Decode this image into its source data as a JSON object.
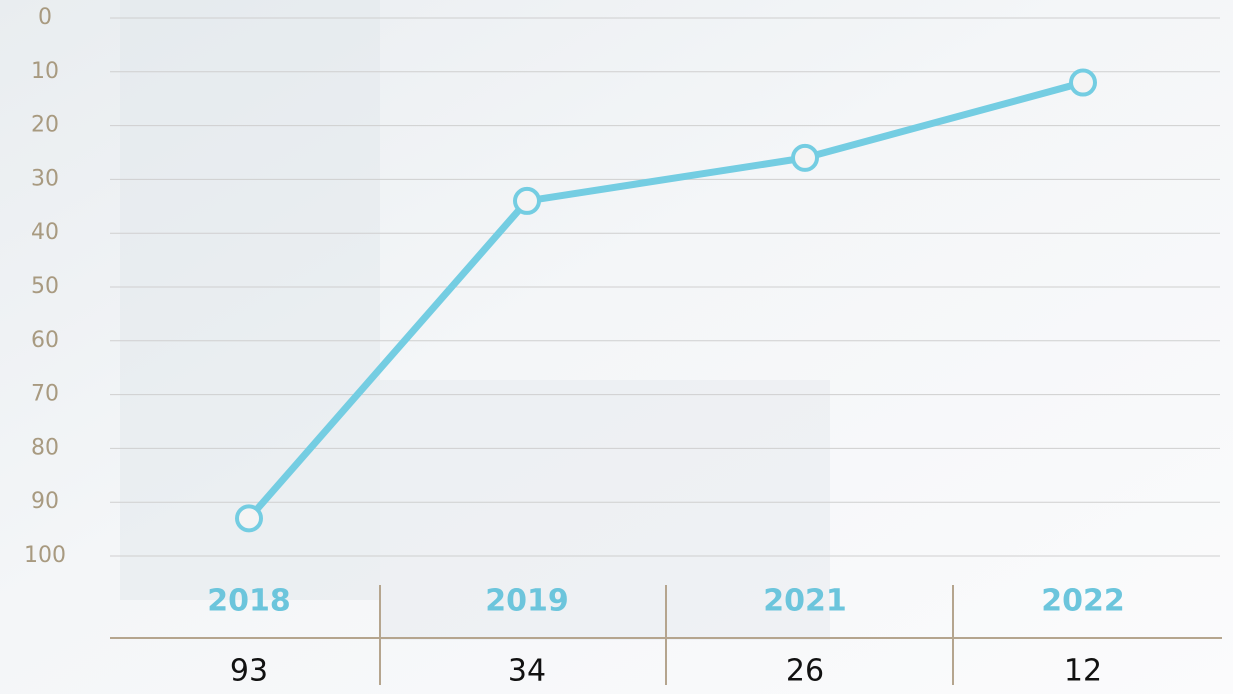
{
  "chart_data": {
    "type": "line",
    "categories": [
      "2018",
      "2019",
      "2021",
      "2022"
    ],
    "values": [
      93,
      34,
      26,
      12
    ],
    "color": "#74cde2",
    "ylim": [
      0,
      100
    ],
    "y_inverted": true,
    "yticks": [
      0,
      10,
      20,
      30,
      40,
      50,
      60,
      70,
      80,
      90,
      100
    ],
    "grid": true
  }
}
